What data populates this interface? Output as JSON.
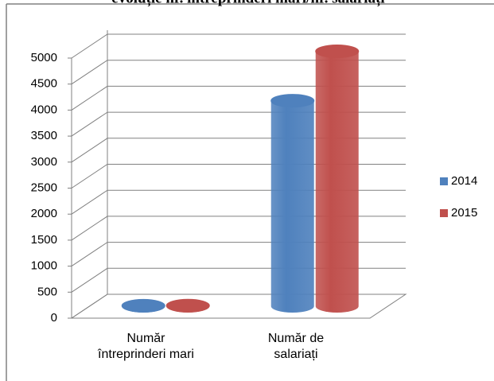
{
  "chart_data": {
    "type": "bar3d",
    "title": "evoluție nr. întreprinderi mari/nr. salariați",
    "categories": [
      "Număr întreprinderi mari",
      "Număr de salariați"
    ],
    "series": [
      {
        "name": "2014",
        "color": "#4f81bd",
        "values": [
          10,
          3950
        ]
      },
      {
        "name": "2015",
        "color": "#c0504d",
        "values": [
          12,
          4900
        ]
      }
    ],
    "ylim": [
      0,
      5000
    ],
    "yticks": [
      0,
      500,
      1000,
      1500,
      2000,
      2500,
      3000,
      3500,
      4000,
      4500,
      5000
    ],
    "grid": true,
    "legend": "right"
  }
}
